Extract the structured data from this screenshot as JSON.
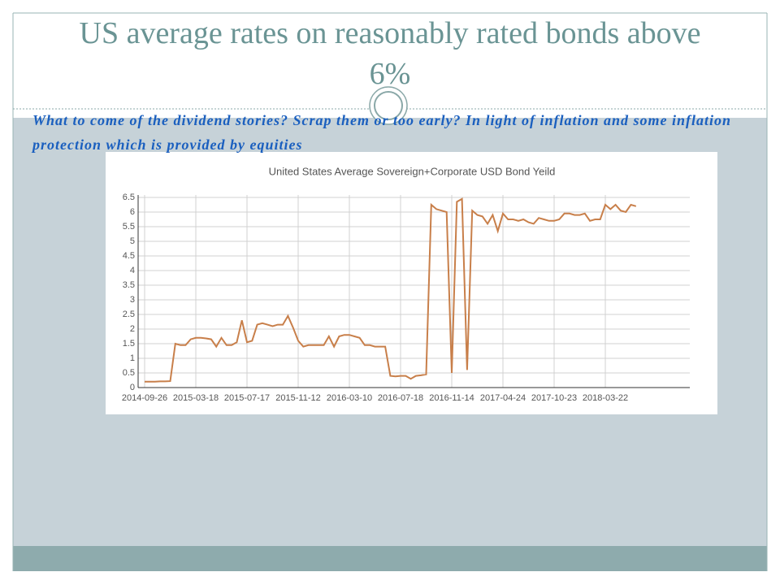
{
  "slide": {
    "title": "US average rates on reasonably rated bonds above 6%",
    "subtitle": "What to come of the dividend stories? Scrap them or too early? In light of inflation and some inflation protection which is provided by equities"
  },
  "chart_data": {
    "type": "line",
    "title": "United States Average Sovereign+Corporate  USD Bond Yeild",
    "color": "#c87f4a",
    "grid": true,
    "categories": [
      "2014-09-26",
      null,
      null,
      null,
      null,
      null,
      null,
      null,
      null,
      null,
      "2015-03-18",
      null,
      null,
      null,
      null,
      null,
      null,
      null,
      null,
      null,
      "2015-07-17",
      null,
      null,
      null,
      null,
      null,
      null,
      null,
      null,
      null,
      "2015-11-12",
      null,
      null,
      null,
      null,
      null,
      null,
      null,
      null,
      null,
      "2016-03-10",
      null,
      null,
      null,
      null,
      null,
      null,
      null,
      null,
      null,
      "2016-07-18",
      null,
      null,
      null,
      null,
      null,
      null,
      null,
      null,
      null,
      "2016-11-14",
      null,
      null,
      null,
      null,
      null,
      null,
      null,
      null,
      null,
      "2017-04-24",
      null,
      null,
      null,
      null,
      null,
      null,
      null,
      null,
      null,
      "2017-10-23",
      null,
      null,
      null,
      null,
      null,
      null,
      null,
      null,
      null,
      "2018-03-22",
      null,
      null,
      null,
      null,
      null,
      null
    ],
    "values": [
      0.2,
      0.2,
      0.2,
      0.21,
      0.21,
      0.22,
      1.5,
      1.45,
      1.45,
      1.65,
      1.7,
      1.7,
      1.68,
      1.65,
      1.4,
      1.7,
      1.45,
      1.45,
      1.55,
      2.3,
      1.55,
      1.6,
      2.15,
      2.2,
      2.15,
      2.1,
      2.15,
      2.15,
      2.45,
      2.05,
      1.6,
      1.4,
      1.45,
      1.45,
      1.45,
      1.45,
      1.75,
      1.4,
      1.75,
      1.8,
      1.8,
      1.75,
      1.7,
      1.45,
      1.45,
      1.4,
      1.4,
      1.4,
      0.4,
      0.38,
      0.4,
      0.4,
      0.3,
      0.4,
      0.42,
      0.45,
      6.25,
      6.1,
      6.05,
      6.0,
      0.5,
      6.35,
      6.45,
      0.6,
      6.05,
      5.9,
      5.85,
      5.6,
      5.9,
      5.35,
      5.95,
      5.75,
      5.75,
      5.7,
      5.75,
      5.65,
      5.6,
      5.8,
      5.75,
      5.7,
      5.7,
      5.75,
      5.95,
      5.95,
      5.9,
      5.9,
      5.95,
      5.7,
      5.75,
      5.75,
      6.25,
      6.1,
      6.25,
      6.05,
      6.0,
      6.25,
      6.2
    ],
    "ylim": [
      0,
      6.5
    ],
    "yticks": [
      0,
      0.5,
      1,
      1.5,
      2,
      2.5,
      3,
      3.5,
      4,
      4.5,
      5,
      5.5,
      6,
      6.5
    ]
  }
}
